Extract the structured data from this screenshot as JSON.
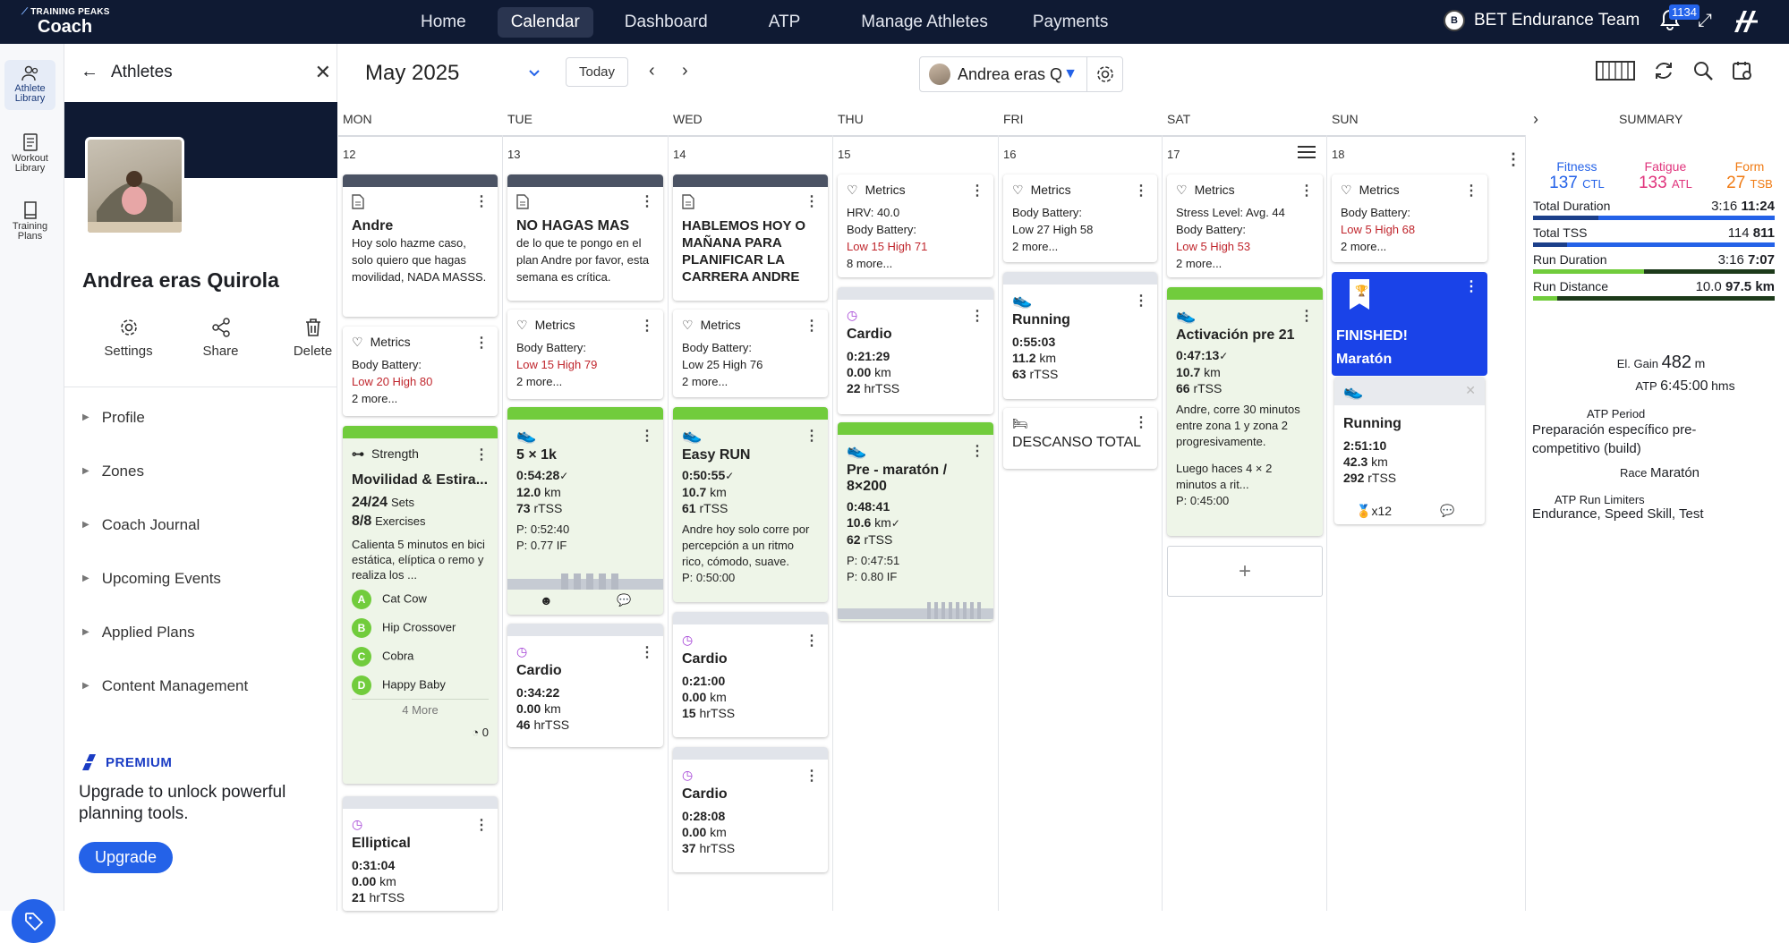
{
  "app": {
    "logo_small": "TRAINING PEAKS",
    "logo_big": "Coach"
  },
  "nav": [
    "Home",
    "Calendar",
    "Dashboard",
    "ATP",
    "Manage Athletes",
    "Payments"
  ],
  "team": {
    "logo_text": "B",
    "name": "BET Endurance Team",
    "notifications": "1134"
  },
  "rail": [
    {
      "label1": "Athlete",
      "label2": "Library"
    },
    {
      "label1": "Workout",
      "label2": "Library"
    },
    {
      "label1": "Training",
      "label2": "Plans"
    }
  ],
  "panel": {
    "title": "Athletes",
    "athlete_name": "Andrea eras Quirola",
    "actions": [
      "Settings",
      "Share",
      "Delete"
    ],
    "menu": [
      "Profile",
      "Zones",
      "Coach Journal",
      "Upcoming Events",
      "Applied Plans",
      "Content Management"
    ],
    "premium": "PREMIUM",
    "upgrade_msg1": "Upgrade to unlock powerful",
    "upgrade_msg2": "planning tools.",
    "upgrade_btn": "Upgrade"
  },
  "calendar": {
    "month": "May 2025",
    "today": "Today",
    "athlete": "Andrea eras Quir...",
    "days": [
      "MON",
      "TUE",
      "WED",
      "THU",
      "FRI",
      "SAT",
      "SUN"
    ],
    "summary_label": "SUMMARY",
    "dates": [
      "12",
      "13",
      "14",
      "15",
      "16",
      "17",
      "18"
    ]
  },
  "mon": {
    "note_title": "Andre",
    "note_text": "Hoy solo hazme caso, solo quiero que hagas movilidad, NADA MASSS.",
    "metrics": "Metrics",
    "bb": "Body Battery:",
    "bb_val": "Low 20 High 80",
    "more": "2 more...",
    "strength_label": "Strength",
    "strength_title": "Movilidad & Estira...",
    "sets": "24/24",
    "sets_lbl": "Sets",
    "ex": "8/8",
    "ex_lbl": "Exercises",
    "desc": "Calienta 5 minutos en bici estática, elíptica o remo y realiza los ...",
    "exercises": [
      {
        "letter": "A",
        "name": "Cat Cow"
      },
      {
        "letter": "B",
        "name": "Hip Crossover"
      },
      {
        "letter": "C",
        "name": "Cobra"
      },
      {
        "letter": "D",
        "name": "Happy Baby"
      }
    ],
    "more_ex": "4 More",
    "count": "0",
    "ell_title": "Elliptical",
    "ell_time": "0:31:04",
    "ell_km": "0.00",
    "ell_tss": "21"
  },
  "tue": {
    "note_title": "NO HAGAS MAS",
    "note_text": "de lo que te pongo en el plan Andre por favor, esta semana es crítica.",
    "metrics": "Metrics",
    "bb": "Body Battery:",
    "bb_val": "Low 15 High 79",
    "more": "2 more...",
    "run_title": "5 × 1k",
    "run_time": "0:54:28",
    "run_km": "12.0",
    "run_tss": "73",
    "p": "P: 0:52:40",
    "p2": "P: 0.77 IF",
    "cardio_title": "Cardio",
    "cardio_time": "0:34:22",
    "cardio_km": "0.00",
    "cardio_tss": "46"
  },
  "wed": {
    "note_title": "HABLEMOS HOY O MAÑANA PARA PLANIFICAR LA CARRERA ANDRE",
    "metrics": "Metrics",
    "bb": "Body Battery:",
    "bb_val": "Low 25 High 76",
    "more": "2 more...",
    "run_title": "Easy RUN",
    "run_time": "0:50:55",
    "run_km": "10.7",
    "run_tss": "61",
    "run_desc": "Andre hoy solo corre por percepción a un ritmo rico, cómodo, suave.",
    "p": "P: 0:50:00",
    "c1_title": "Cardio",
    "c1_time": "0:21:00",
    "c1_km": "0.00",
    "c1_tss": "15",
    "c2_title": "Cardio",
    "c2_time": "0:28:08",
    "c2_km": "0.00",
    "c2_tss": "37"
  },
  "thu": {
    "metrics": "Metrics",
    "hrv": "HRV: 40.0",
    "bb": "Body Battery:",
    "bb_val": "Low 15 High 71",
    "more": "8 more...",
    "cardio_title": "Cardio",
    "cardio_time": "0:21:29",
    "cardio_km": "0.00",
    "cardio_tss": "22",
    "run_title": "Pre - maratón / 8×200",
    "run_time": "0:48:41",
    "run_km": "10.6",
    "run_tss": "62",
    "p": "P: 0:47:51",
    "p2": "P: 0.80 IF"
  },
  "fri": {
    "metrics": "Metrics",
    "bb": "Body Battery:",
    "bb_val": "Low 27 High 58",
    "more": "2 more...",
    "run_title": "Running",
    "run_time": "0:55:03",
    "run_km": "11.2",
    "run_tss": "63",
    "rest": "DESCANSO TOTAL"
  },
  "sat": {
    "metrics": "Metrics",
    "stress": "Stress Level: Avg. 44",
    "bb": "Body Battery:",
    "bb_val": "Low 5 High 53",
    "more": "2 more...",
    "run_title": "Activación pre 21",
    "run_time": "0:47:13",
    "run_km": "10.7",
    "run_tss": "66",
    "desc1": "Andre, corre 30 minutos entre zona 1 y zona 2 progresivamente.",
    "desc2": "Luego haces 4 × 2 minutos a rit...",
    "p": "P: 0:45:00"
  },
  "sun": {
    "metrics": "Metrics",
    "bb": "Body Battery:",
    "bb_val": "Low 5 High 68",
    "more": "2 more...",
    "finished": "FINISHED!",
    "race": "Maratón",
    "run_title": "Running",
    "run_time": "2:51:10",
    "run_km": "42.3",
    "run_tss": "292",
    "medals": "x12"
  },
  "units": {
    "km": "km",
    "hrtss": "hrTSS",
    "rtss": "rTSS",
    "sets": "Sets",
    "ex": "Exercises"
  },
  "summary": {
    "fitness_lbl": "Fitness",
    "fitness": "137",
    "ctl": "CTL",
    "fatigue_lbl": "Fatigue",
    "fatigue": "133",
    "atl": "ATL",
    "form_lbl": "Form",
    "form": "27",
    "tsb": "TSB",
    "rows": [
      {
        "label": "Total Duration",
        "a": "3:16",
        "b": "11:24",
        "fill": 0.27,
        "color": "#2462e8"
      },
      {
        "label": "Total TSS",
        "a": "114",
        "b": "811",
        "fill": 0.14,
        "color": "#2462e8"
      },
      {
        "label": "Run Duration",
        "a": "3:16",
        "b": "7:07",
        "fill": 0.46,
        "color": "#71cc3c"
      },
      {
        "label": "Run Distance",
        "a": "10.0",
        "b": "97.5 km",
        "fill": 0.1,
        "color": "#71cc3c"
      }
    ],
    "el_gain_lbl": "El. Gain",
    "el_gain": "482",
    "el_unit": "m",
    "atp_lbl": "ATP",
    "atp": "6:45:00",
    "atp_unit": "hms",
    "period_lbl": "ATP Period",
    "period": "Preparación específico pre-competitivo (build)",
    "race_lbl": "Race",
    "race": "Maratón",
    "lim_lbl": "ATP Run Limiters",
    "limiters": "Endurance, Speed Skill, Test"
  }
}
